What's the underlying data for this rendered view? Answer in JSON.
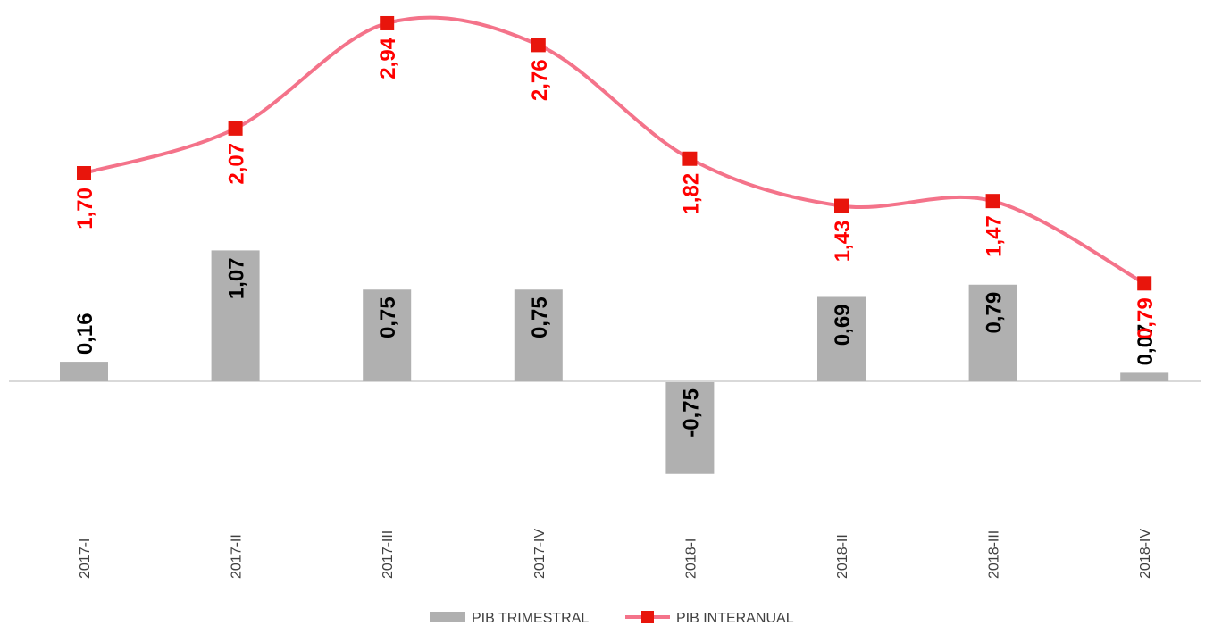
{
  "chart_data": {
    "type": "bar",
    "categories": [
      "2017-I",
      "2017-II",
      "2017-III",
      "2017-IV",
      "2018-I",
      "2018-II",
      "2018-III",
      "2018-IV"
    ],
    "series": [
      {
        "name": "PIB TRIMESTRAL",
        "type": "bar",
        "values": [
          0.16,
          1.07,
          0.75,
          0.75,
          -0.75,
          0.69,
          0.79,
          0.07
        ],
        "labels": [
          "0,16",
          "1,07",
          "0,75",
          "0,75",
          "-0,75",
          "0,69",
          "0,79",
          "0,07"
        ]
      },
      {
        "name": "PIB INTERANUAL",
        "type": "line",
        "smooth": true,
        "marker": "square",
        "values": [
          1.7,
          2.07,
          2.94,
          2.76,
          1.82,
          1.43,
          1.47,
          0.79
        ],
        "labels": [
          "1,70",
          "2,07",
          "2,94",
          "2,76",
          "1,82",
          "1,43",
          "1,47",
          "0,79"
        ]
      }
    ],
    "ylim": [
      -0.75,
      3.1
    ],
    "grid": false,
    "legend_position": "bottom",
    "colors": {
      "bar": "#b0b0b0",
      "line": "#f4738a",
      "marker": "#e8150c",
      "line_label": "#ff0000",
      "bar_label": "#000000",
      "axis": "#d9d9d9",
      "text": "#404040"
    }
  }
}
